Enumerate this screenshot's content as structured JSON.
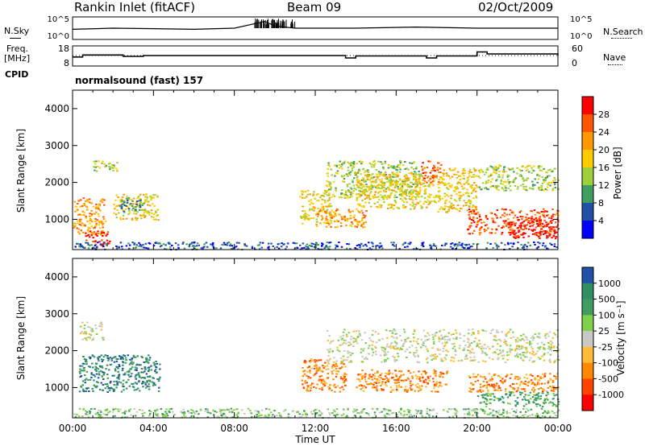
{
  "header": {
    "station": "Rankin Inlet (fitACF)",
    "beam": "Beam 09",
    "date": "02/Oct/2009"
  },
  "top_panels": {
    "nsky_label": "N.Sky",
    "nsky_ticks": [
      "10^5",
      "10^0"
    ],
    "nsearch_label": "N.Search",
    "freq_label_1": "Freq.",
    "freq_label_2": "[MHz]",
    "freq_ticks": [
      "18",
      "8"
    ],
    "nave_ticks": [
      "60",
      "0"
    ],
    "nave_label": "Nave",
    "cpid_label": "CPID",
    "cpid_value": "normalsound (fast) 157"
  },
  "chart_data": [
    {
      "type": "heatmap",
      "panel": "power",
      "title": "",
      "xlabel": "Time UT",
      "ylabel": "Slant Range [km]",
      "xlim_hours": [
        0,
        24
      ],
      "ylim": [
        180,
        4500
      ],
      "y_ticks": [
        1000,
        2000,
        3000,
        4000
      ],
      "x_tick_labels": [
        "00:00",
        "04:00",
        "08:00",
        "12:00",
        "16:00",
        "20:00",
        "00:00"
      ],
      "colorbar_label": "Power [dB]",
      "colorbar_ticks": [
        "28",
        "24",
        "20",
        "16",
        "12",
        "8",
        "4"
      ],
      "colorbar_colors": [
        "#ff0000",
        "#ff5500",
        "#ff9900",
        "#ffcc00",
        "#9fcf3a",
        "#3f9d5f",
        "#2050a8",
        "#0000ff"
      ],
      "scatter_regions": [
        {
          "t0": 0.0,
          "t1": 1.6,
          "r0": 600,
          "r1": 1600,
          "level": 2
        },
        {
          "t0": 0.6,
          "t1": 1.8,
          "r0": 250,
          "r1": 700,
          "level": 0
        },
        {
          "t0": 1.0,
          "t1": 2.2,
          "r0": 2300,
          "r1": 2600,
          "level": 4
        },
        {
          "t0": 2.0,
          "t1": 4.2,
          "r0": 1000,
          "r1": 1700,
          "level": 3
        },
        {
          "t0": 2.3,
          "t1": 3.5,
          "r0": 1200,
          "r1": 1600,
          "level": 5
        },
        {
          "t0": 11.2,
          "t1": 12.8,
          "r0": 900,
          "r1": 1800,
          "level": 3
        },
        {
          "t0": 12.0,
          "t1": 14.5,
          "r0": 800,
          "r1": 1300,
          "level": 2
        },
        {
          "t0": 12.5,
          "t1": 17.2,
          "r0": 1600,
          "r1": 2600,
          "level": 4
        },
        {
          "t0": 14.0,
          "t1": 18.0,
          "r0": 1300,
          "r1": 2300,
          "level": 3
        },
        {
          "t0": 17.2,
          "t1": 18.2,
          "r0": 2000,
          "r1": 2600,
          "level": 1
        },
        {
          "t0": 18.0,
          "t1": 20.0,
          "r0": 1200,
          "r1": 2400,
          "level": 3
        },
        {
          "t0": 19.5,
          "t1": 24.0,
          "r0": 600,
          "r1": 1300,
          "level": 1
        },
        {
          "t0": 20.0,
          "t1": 24.0,
          "r0": 1800,
          "r1": 2500,
          "level": 4
        },
        {
          "t0": 21.5,
          "t1": 24.0,
          "r0": 500,
          "r1": 1000,
          "level": 0
        },
        {
          "t0": 0.0,
          "t1": 24.0,
          "r0": 200,
          "r1": 400,
          "level": 6
        }
      ]
    },
    {
      "type": "heatmap",
      "panel": "velocity",
      "title": "",
      "xlabel": "Time UT",
      "ylabel": "Slant Range [km]",
      "xlim_hours": [
        0,
        24
      ],
      "ylim": [
        180,
        4500
      ],
      "y_ticks": [
        1000,
        2000,
        3000,
        4000
      ],
      "x_tick_labels": [
        "00:00",
        "04:00",
        "08:00",
        "12:00",
        "16:00",
        "20:00",
        "00:00"
      ],
      "colorbar_label": "Velocity [m s⁻¹]",
      "colorbar_ticks": [
        "1000",
        "500",
        "100",
        "25",
        "-25",
        "-100",
        "-500",
        "-1000"
      ],
      "colorbar_colors": [
        "#2050a8",
        "#2f8f63",
        "#3f9d5f",
        "#7fd04a",
        "#c9c9c4",
        "#ffbb33",
        "#ff8800",
        "#ff4400",
        "#ff0000"
      ],
      "scatter_regions": [
        {
          "t0": 0.3,
          "t1": 4.3,
          "r0": 900,
          "r1": 1900,
          "level": 1
        },
        {
          "t0": 0.3,
          "t1": 1.5,
          "r0": 2300,
          "r1": 2800,
          "level": 4
        },
        {
          "t0": 11.3,
          "t1": 13.5,
          "r0": 900,
          "r1": 1800,
          "level": 6
        },
        {
          "t0": 12.5,
          "t1": 24.0,
          "r0": 1700,
          "r1": 2600,
          "level": 4
        },
        {
          "t0": 14.0,
          "t1": 18.5,
          "r0": 900,
          "r1": 1500,
          "level": 6
        },
        {
          "t0": 19.5,
          "t1": 24.0,
          "r0": 900,
          "r1": 1400,
          "level": 6
        },
        {
          "t0": 20.0,
          "t1": 24.0,
          "r0": 500,
          "r1": 900,
          "level": 2
        },
        {
          "t0": 0.0,
          "t1": 24.0,
          "r0": 200,
          "r1": 450,
          "level": 3
        }
      ]
    },
    {
      "type": "line",
      "panel": "n-sky",
      "xlim_hours": [
        0,
        24
      ],
      "series": [
        {
          "name": "N.Sky",
          "x": [
            0,
            2,
            4,
            6,
            8,
            9,
            9.5,
            10,
            11,
            14,
            17,
            20,
            24
          ],
          "values": [
            0.45,
            0.5,
            0.48,
            0.45,
            0.5,
            0.7,
            0.8,
            0.6,
            0.5,
            0.5,
            0.55,
            0.5,
            0.5
          ]
        }
      ]
    },
    {
      "type": "line",
      "panel": "frequency-nave",
      "xlim_hours": [
        0,
        24
      ],
      "series": [
        {
          "name": "Freq.",
          "x": [
            0,
            0.5,
            2.5,
            3.5,
            10,
            13.5,
            14,
            17.5,
            18,
            20,
            20.5,
            24
          ],
          "values": [
            12.5,
            13.5,
            12.8,
            13.2,
            13.2,
            12,
            13,
            12,
            13,
            15,
            14,
            13.3
          ]
        }
      ]
    }
  ]
}
